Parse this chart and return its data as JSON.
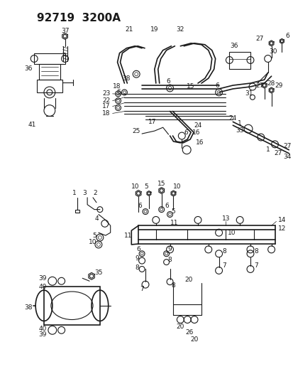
{
  "title": "92719  3200A",
  "bg_color": "#ffffff",
  "line_color": "#1a1a1a",
  "fig_width": 4.14,
  "fig_height": 5.33,
  "dpi": 100
}
